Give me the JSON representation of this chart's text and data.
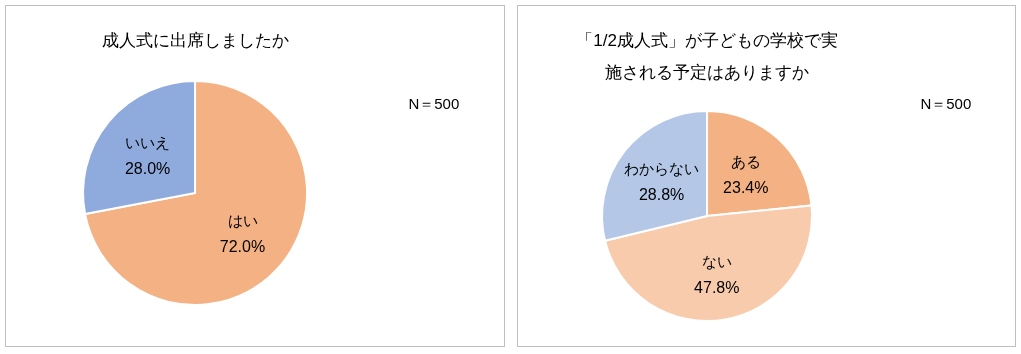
{
  "chart_data": [
    {
      "type": "pie",
      "title": "成人式に出席しましたか",
      "categories": [
        "はい",
        "いいえ"
      ],
      "values": [
        72.0,
        28.0
      ],
      "value_labels": [
        "72.0%",
        "28.0%"
      ],
      "colors": [
        "#f4b183",
        "#8faadc"
      ],
      "annotations": [
        "N＝500"
      ]
    },
    {
      "type": "pie",
      "title": "「1/2成人式」が子どもの学校で実施される予定はありますか",
      "categories": [
        "ある",
        "ない",
        "わからない"
      ],
      "values": [
        23.4,
        47.8,
        28.8
      ],
      "value_labels": [
        "23.4%",
        "47.8%",
        "28.8%"
      ],
      "colors": [
        "#f4b183",
        "#f8cbad",
        "#b4c7e7"
      ],
      "annotations": [
        "N＝500"
      ]
    }
  ]
}
